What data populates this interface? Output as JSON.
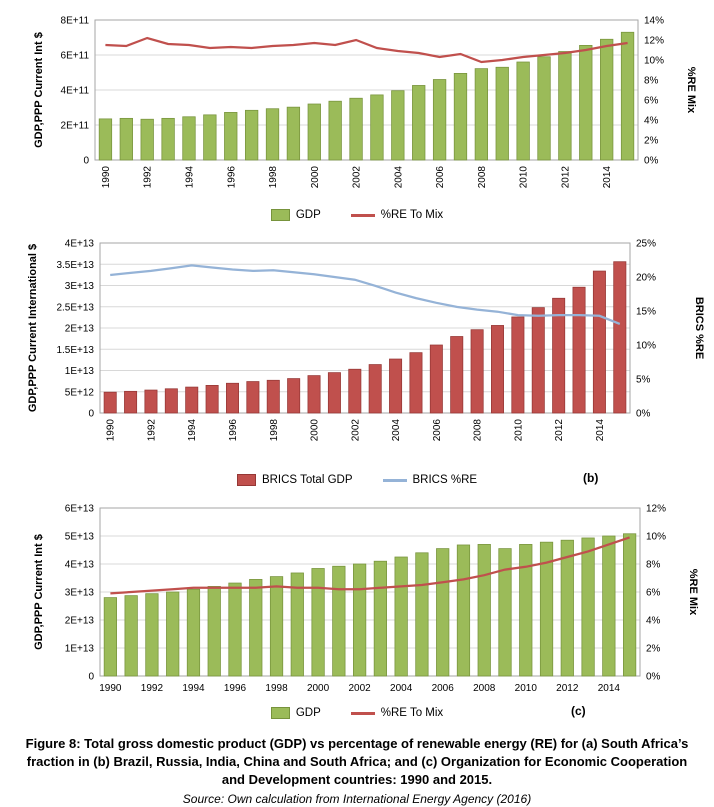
{
  "figure": {
    "caption": "Figure 8: Total gross domestic product (GDP) vs percentage of renewable energy (RE) for (a) South Africa’s fraction in (b) Brazil, Russia, India, China and South Africa; and (c) Organization for Economic Cooperation and Development countries: 1990 and 2015.",
    "source": "Source: Own calculation from International Energy Agency (2016)"
  },
  "chart_data": [
    {
      "id": "a",
      "type": "bar",
      "description": "South Africa GDP (bars) vs share of renewable energy in mix (line)",
      "years": [
        1990,
        1991,
        1992,
        1993,
        1994,
        1995,
        1996,
        1997,
        1998,
        1999,
        2000,
        2001,
        2002,
        2003,
        2004,
        2005,
        2006,
        2007,
        2008,
        2009,
        2010,
        2011,
        2012,
        2013,
        2014,
        2015
      ],
      "bars": {
        "name": "GDP",
        "color": "#9BBB59",
        "border": "#77933C",
        "values": [
          235000000000.0,
          238000000000.0,
          233000000000.0,
          238000000000.0,
          247000000000.0,
          258000000000.0,
          272000000000.0,
          284000000000.0,
          293000000000.0,
          302000000000.0,
          320000000000.0,
          336000000000.0,
          353000000000.0,
          372000000000.0,
          396000000000.0,
          426000000000.0,
          460000000000.0,
          495000000000.0,
          522000000000.0,
          530000000000.0,
          560000000000.0,
          590000000000.0,
          620000000000.0,
          655000000000.0,
          690000000000.0,
          730000000000.0
        ]
      },
      "line": {
        "name": "%RE To Mix",
        "color": "#C0504D",
        "values_percent": [
          11.5,
          11.4,
          12.2,
          11.6,
          11.5,
          11.2,
          11.3,
          11.2,
          11.4,
          11.5,
          11.7,
          11.5,
          12.0,
          11.2,
          10.9,
          10.7,
          10.3,
          10.6,
          9.8,
          10.0,
          10.3,
          10.5,
          10.7,
          11.0,
          11.4,
          11.7
        ]
      },
      "left_axis": {
        "title": "GDP,PPP Current Int $",
        "max": 800000000000.0,
        "ticks": [
          "0",
          "2E+11",
          "4E+11",
          "6E+11",
          "8E+11"
        ]
      },
      "right_axis": {
        "title": "%RE Mix",
        "max": 14,
        "ticks": [
          "0%",
          "2%",
          "4%",
          "6%",
          "8%",
          "10%",
          "12%",
          "14%"
        ]
      },
      "x": {
        "step": 2,
        "orientation": "vertical"
      },
      "annotation": ""
    },
    {
      "id": "b",
      "type": "bar",
      "description": "BRICS total GDP (bars) vs BRICS renewable energy share (line)",
      "years": [
        1990,
        1991,
        1992,
        1993,
        1994,
        1995,
        1996,
        1997,
        1998,
        1999,
        2000,
        2001,
        2002,
        2003,
        2004,
        2005,
        2006,
        2007,
        2008,
        2009,
        2010,
        2011,
        2012,
        2013,
        2014,
        2015
      ],
      "bars": {
        "name": "BRICS Total GDP",
        "color": "#C0504D",
        "border": "#953735",
        "values": [
          4900000000000.0,
          5100000000000.0,
          5400000000000.0,
          5700000000000.0,
          6100000000000.0,
          6500000000000.0,
          7000000000000.0,
          7400000000000.0,
          7700000000000.0,
          8100000000000.0,
          8800000000000.0,
          9500000000000.0,
          10300000000000.0,
          11400000000000.0,
          12700000000000.0,
          14200000000000.0,
          16000000000000.0,
          18000000000000.0,
          19600000000000.0,
          20600000000000.0,
          22600000000000.0,
          24800000000000.0,
          27000000000000.0,
          29600000000000.0,
          33400000000000.0,
          35600000000000.0
        ]
      },
      "line": {
        "name": "BRICS %RE",
        "color": "#95B3D7",
        "values_percent": [
          20.3,
          20.6,
          20.9,
          21.3,
          21.7,
          21.4,
          21.1,
          20.9,
          21.0,
          20.7,
          20.4,
          20.0,
          19.6,
          18.7,
          17.7,
          16.9,
          16.2,
          15.6,
          15.2,
          14.9,
          14.4,
          14.3,
          14.4,
          14.4,
          14.3,
          13.1
        ]
      },
      "left_axis": {
        "title": "GDP,PPP Current International $",
        "max": 40000000000000.0,
        "ticks": [
          "0",
          "5E+12",
          "1E+13",
          "1.5E+13",
          "2E+13",
          "2.5E+13",
          "3E+13",
          "3.5E+13",
          "4E+13"
        ]
      },
      "right_axis": {
        "title": "BRICS %RE",
        "max": 25,
        "ticks": [
          "0%",
          "5%",
          "10%",
          "15%",
          "20%",
          "25%"
        ]
      },
      "x": {
        "step": 2,
        "orientation": "vertical"
      },
      "annotation": "(b)"
    },
    {
      "id": "c",
      "type": "bar",
      "description": "OECD GDP (bars) vs share of renewable energy in mix (line)",
      "years": [
        1990,
        1991,
        1992,
        1993,
        1994,
        1995,
        1996,
        1997,
        1998,
        1999,
        2000,
        2001,
        2002,
        2003,
        2004,
        2005,
        2006,
        2007,
        2008,
        2009,
        2010,
        2011,
        2012,
        2013,
        2014,
        2015
      ],
      "bars": {
        "name": "GDP",
        "color": "#9BBB59",
        "border": "#77933C",
        "values": [
          28000000000000.0,
          28700000000000.0,
          29400000000000.0,
          30000000000000.0,
          31000000000000.0,
          32000000000000.0,
          33200000000000.0,
          34500000000000.0,
          35500000000000.0,
          36800000000000.0,
          38400000000000.0,
          39200000000000.0,
          40000000000000.0,
          41000000000000.0,
          42500000000000.0,
          44000000000000.0,
          45500000000000.0,
          46800000000000.0,
          47000000000000.0,
          45500000000000.0,
          47000000000000.0,
          47800000000000.0,
          48500000000000.0,
          49300000000000.0,
          50000000000000.0,
          50800000000000.0
        ]
      },
      "line": {
        "name": "%RE To Mix",
        "color": "#C0504D",
        "values_percent": [
          5.9,
          6.0,
          6.1,
          6.2,
          6.3,
          6.3,
          6.3,
          6.3,
          6.4,
          6.3,
          6.3,
          6.2,
          6.2,
          6.3,
          6.4,
          6.5,
          6.7,
          6.9,
          7.2,
          7.6,
          7.8,
          8.1,
          8.5,
          8.9,
          9.4,
          9.9
        ]
      },
      "left_axis": {
        "title": "GDP,PPP  Current Int $",
        "max": 60000000000000.0,
        "ticks": [
          "0",
          "1E+13",
          "2E+13",
          "3E+13",
          "4E+13",
          "5E+13",
          "6E+13"
        ]
      },
      "right_axis": {
        "title": "%RE Mix",
        "max": 12,
        "ticks": [
          "0%",
          "2%",
          "4%",
          "6%",
          "8%",
          "10%",
          "12%"
        ]
      },
      "x": {
        "step": 2,
        "orientation": "horizontal"
      },
      "annotation": "(c)"
    }
  ]
}
